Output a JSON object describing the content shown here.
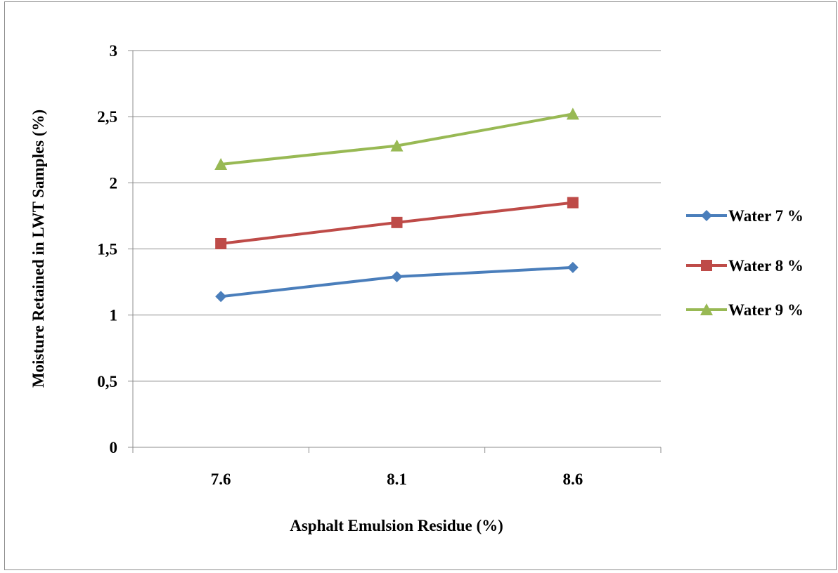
{
  "chart_data": {
    "type": "line",
    "categories": [
      "7.6",
      "8.1",
      "8.6"
    ],
    "series": [
      {
        "name": "Water 7 %",
        "values": [
          1.14,
          1.29,
          1.36
        ],
        "color": "#4a7ebb",
        "marker": "diamond"
      },
      {
        "name": "Water 8 %",
        "values": [
          1.54,
          1.7,
          1.85
        ],
        "color": "#be4b48",
        "marker": "square"
      },
      {
        "name": "Water 9 %",
        "values": [
          2.14,
          2.28,
          2.52
        ],
        "color": "#98b954",
        "marker": "triangle"
      }
    ],
    "xlabel": "Asphalt Emulsion Residue (%)",
    "ylabel": "Moisture Retained in LWT Samples (%)",
    "ylim": [
      0,
      3
    ],
    "yticks": [
      "0",
      "0,5",
      "1",
      "1,5",
      "2",
      "2,5",
      "3"
    ],
    "grid": true,
    "legend_position": "right"
  }
}
